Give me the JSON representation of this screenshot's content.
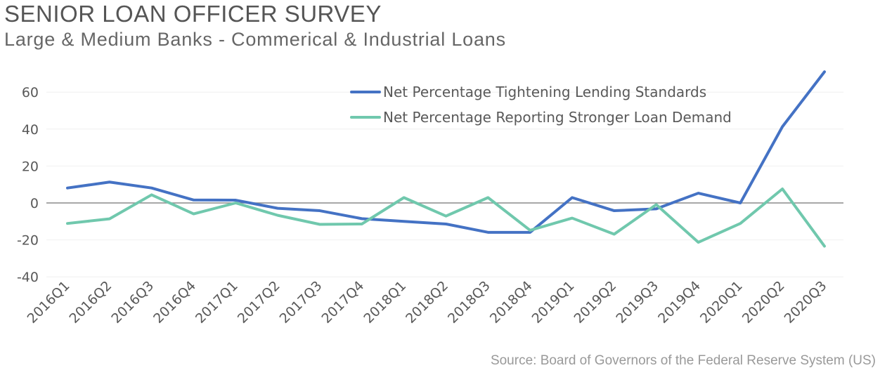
{
  "title": "SENIOR LOAN OFFICER SURVEY",
  "subtitle": "Large & Medium Banks - Commerical & Industrial Loans",
  "source": "Source: Board of Governors of the Federal Reserve System (US)",
  "chart_data": {
    "type": "line",
    "title": "SENIOR LOAN OFFICER SURVEY",
    "xlabel": "",
    "ylabel": "",
    "ylim": [
      -40,
      70
    ],
    "yticks": [
      -40,
      -20,
      0,
      20,
      40,
      60
    ],
    "ytick_labels": [
      "-40",
      "-20",
      "0",
      "20",
      "40",
      "60"
    ],
    "grid": true,
    "legend_position": "top-right",
    "categories": [
      "2016Q1",
      "2016Q2",
      "2016Q3",
      "2016Q4",
      "2017Q1",
      "2017Q2",
      "2017Q3",
      "2017Q4",
      "2018Q1",
      "2018Q2",
      "2018Q3",
      "2018Q4",
      "2019Q1",
      "2019Q2",
      "2019Q3",
      "2019Q4",
      "2020Q1",
      "2020Q2",
      "2020Q3"
    ],
    "series": [
      {
        "name": "Net Percentage Tightening Lending Standards",
        "color": "#4472c4",
        "values": [
          8.1,
          11.3,
          8.1,
          1.6,
          1.5,
          -2.9,
          -4.2,
          -8.5,
          -10.0,
          -11.4,
          -15.9,
          -15.9,
          2.9,
          -4.2,
          -3.2,
          5.3,
          0.0,
          41.3,
          71.0
        ]
      },
      {
        "name": "Net Percentage Reporting Stronger Loan Demand",
        "color": "#70c8ad",
        "values": [
          -11.1,
          -8.6,
          4.4,
          -5.9,
          0.0,
          -6.7,
          -11.6,
          -11.4,
          2.9,
          -7.1,
          2.9,
          -14.8,
          -8.2,
          -16.9,
          -0.9,
          -21.3,
          -11.1,
          7.6,
          -23.4
        ]
      }
    ]
  }
}
